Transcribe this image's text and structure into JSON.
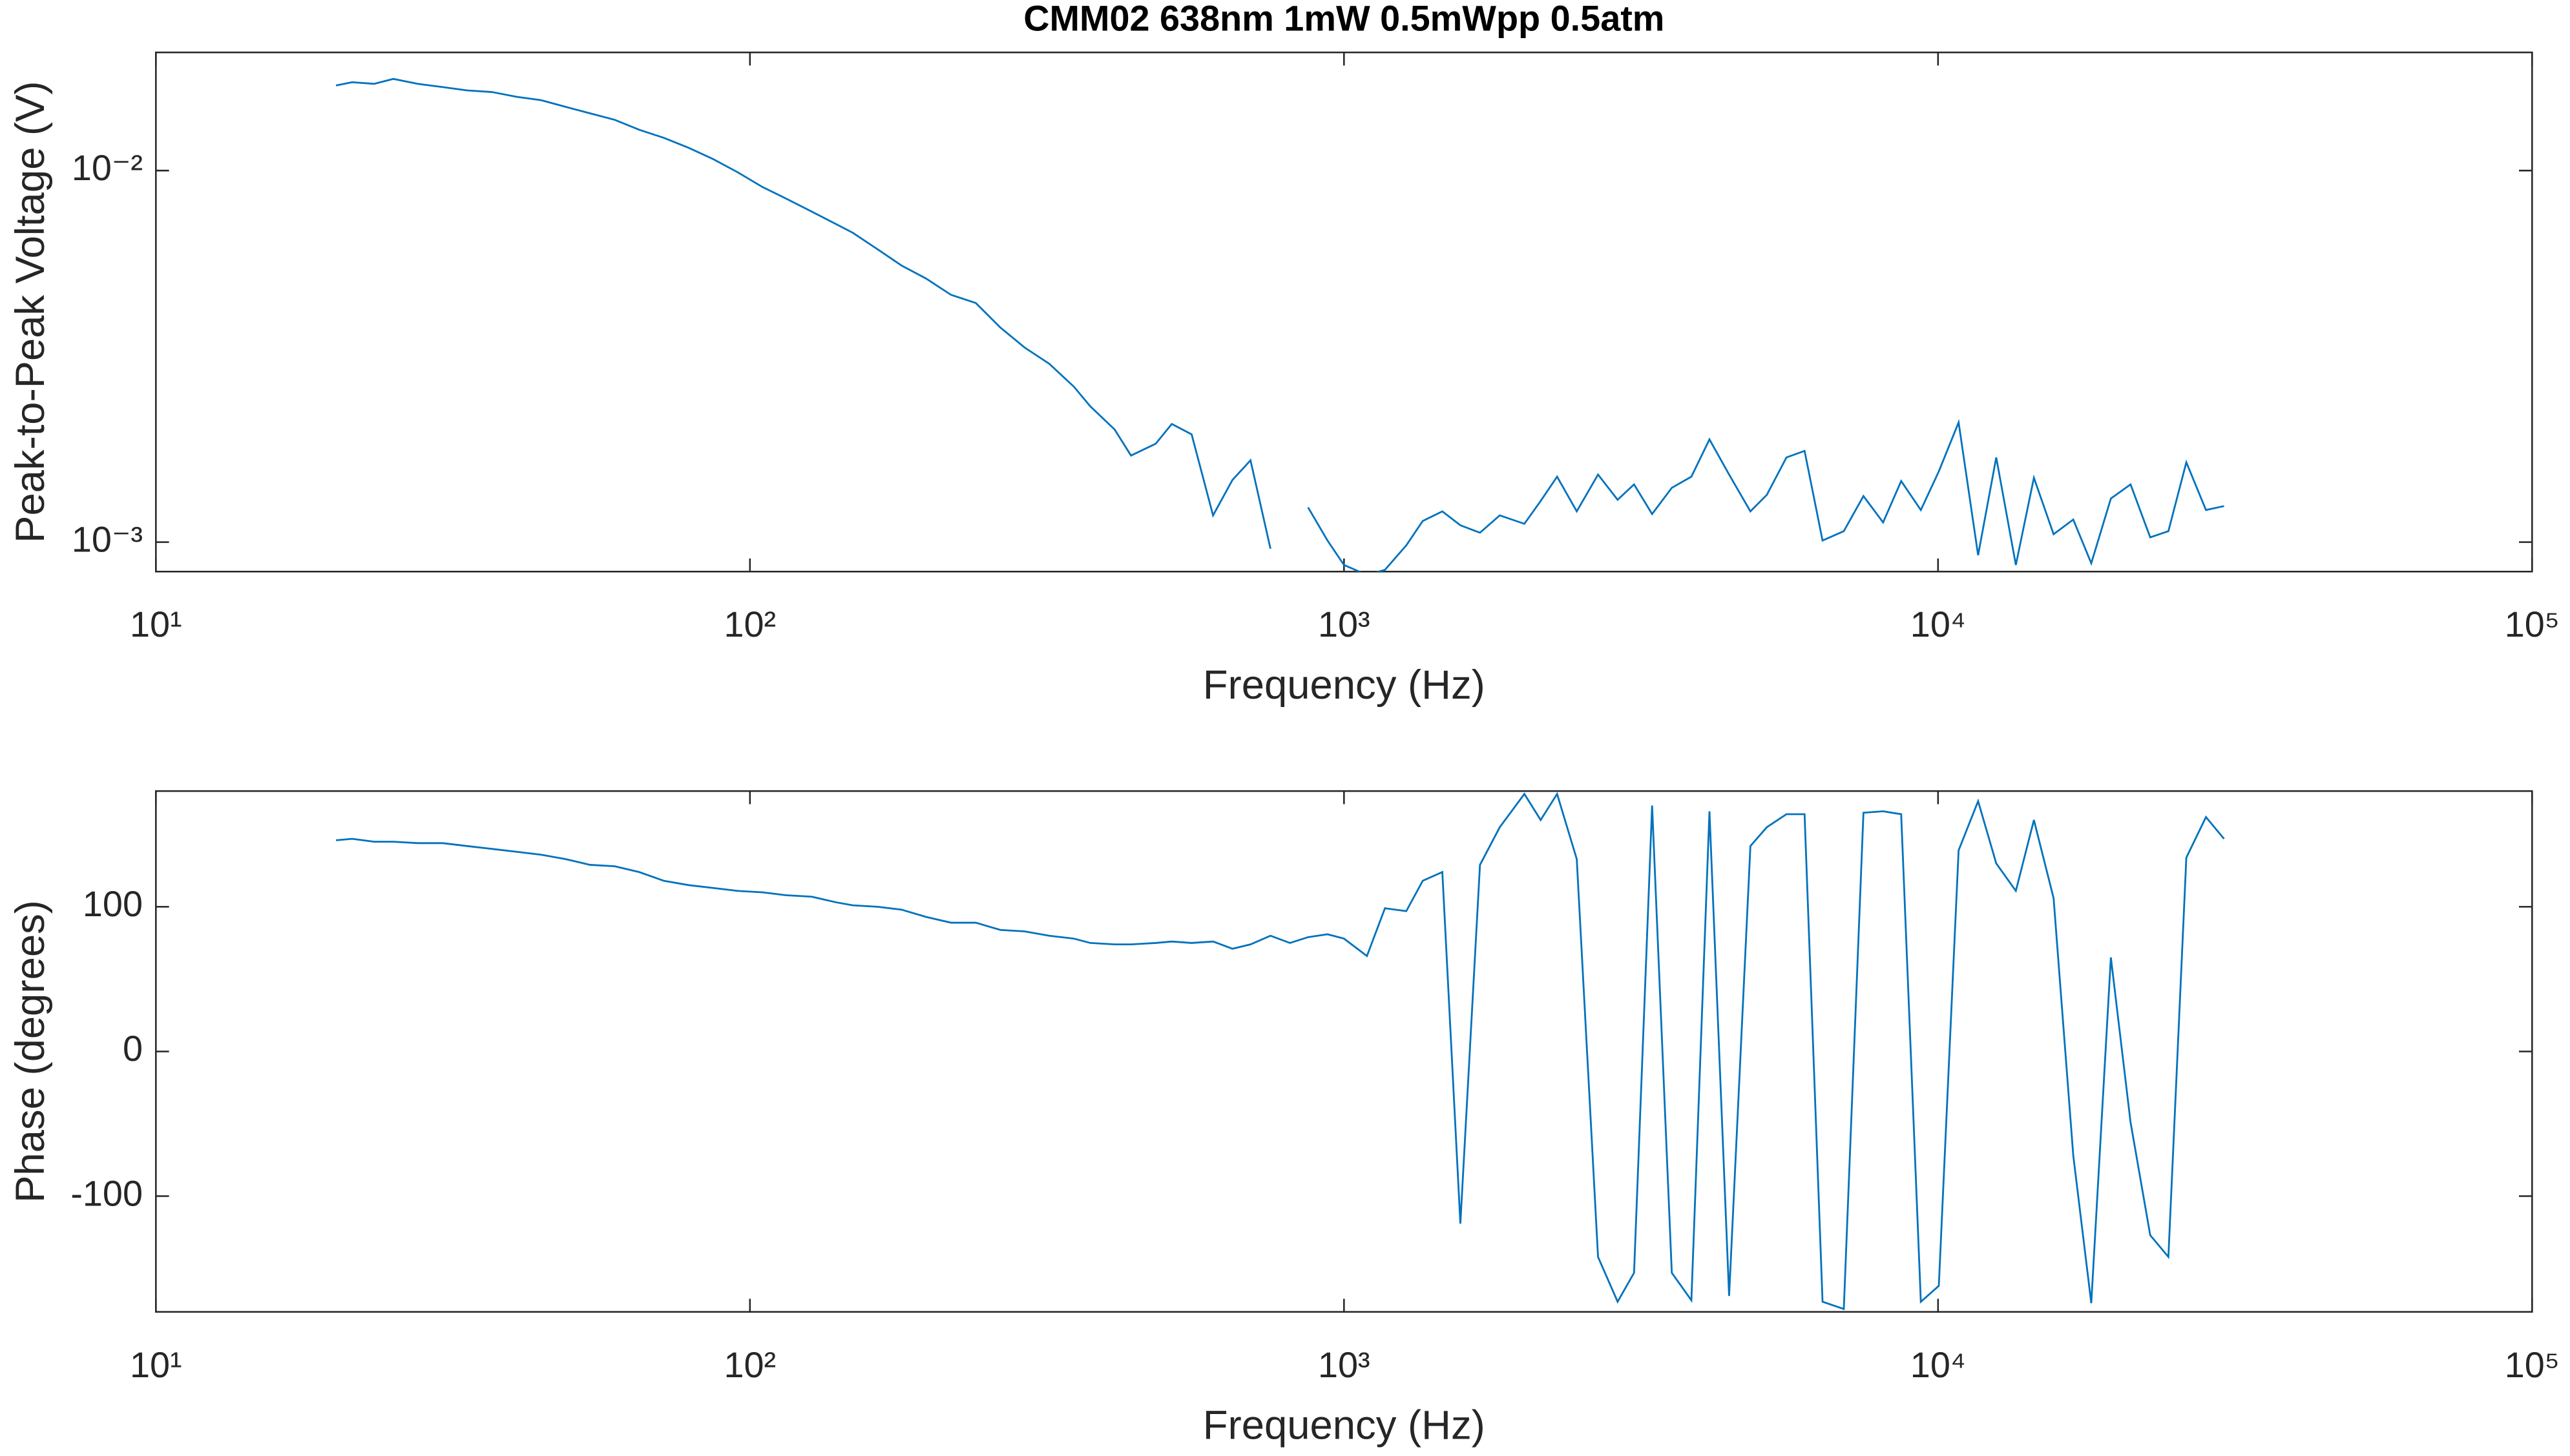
{
  "chart_data": [
    {
      "type": "line",
      "title": "CMM02 638nm 1mW 0.5mWpp 0.5atm",
      "xlabel": "Frequency (Hz)",
      "ylabel": "Peak-to-Peak Voltage (V)",
      "xscale": "log",
      "yscale": "log",
      "x": [
        20.1,
        21.4,
        23.3,
        25.1,
        27.6,
        30.4,
        33.4,
        36.8,
        40.5,
        44.5,
        48.9,
        53.8,
        59.2,
        65.1,
        71.6,
        78.8,
        86.7,
        95.3,
        105,
        115,
        127,
        140,
        149,
        164,
        180,
        198,
        218,
        240,
        264,
        290,
        319,
        351,
        374,
        411,
        438,
        482,
        513,
        554,
        602,
        649,
        696,
        752,
        811,
        870,
        938,
        1000,
        1093,
        1172,
        1273,
        1357,
        1464,
        1570,
        1694,
        1829,
        2012,
        2143,
        2284,
        2465,
        2677,
        2888,
        3078,
        3301,
        3563,
        3844,
        4123,
        4449,
        4832,
        5149,
        5557,
        5961,
        6391,
        6940,
        7489,
        8082,
        8668,
        9355,
        10030,
        10830,
        11680,
        12530,
        13520,
        14500,
        15650,
        16890,
        18110,
        19540,
        21090,
        22760,
        24420,
        26180,
        28250,
        30300
      ],
      "series": [
        {
          "color": "#0072bd",
          "values": [
            0.01695,
            0.01729,
            0.01712,
            0.01765,
            0.01712,
            0.01678,
            0.01644,
            0.01627,
            0.01579,
            0.01547,
            0.01485,
            0.01426,
            0.0137,
            0.01288,
            0.01225,
            0.01152,
            0.01074,
            0.0099,
            0.00903,
            0.00841,
            0.00776,
            0.00716,
            0.0068,
            0.00614,
            0.00555,
            0.00512,
            0.00463,
            0.0044,
            0.00378,
            0.00334,
            0.00302,
            0.00262,
            0.00232,
            0.00201,
            0.00171,
            0.00184,
            0.00208,
            0.00195,
            0.00118,
            0.00147,
            0.00166,
            0.00096,
            null,
            0.00124,
            0.00101,
            0.000868,
            0.000816,
            0.000842,
            0.00098,
            0.00114,
            0.00121,
            0.00111,
            0.00106,
            0.00118,
            0.00112,
            0.00129,
            0.0015,
            0.00121,
            0.00152,
            0.0013,
            0.00143,
            0.00119,
            0.0014,
            0.0015,
            0.00189,
            0.00152,
            0.00121,
            0.00134,
            0.00169,
            0.00176,
            0.00101,
            0.00107,
            0.00133,
            0.00113,
            0.00146,
            0.00122,
            0.00155,
            0.0021,
            0.000922,
            0.00169,
            0.000868,
            0.00149,
            0.00105,
            0.00115,
            0.000877,
            0.00131,
            0.00143,
            0.00103,
            0.00107,
            0.00164,
            0.00122,
            0.00125
          ]
        }
      ],
      "xlim": [
        10,
        100000
      ],
      "xticks": [
        {
          "value": 10,
          "label": "10¹"
        },
        {
          "value": 100,
          "label": "10²"
        },
        {
          "value": 1000,
          "label": "10³"
        },
        {
          "value": 10000,
          "label": "10⁴"
        },
        {
          "value": 100000,
          "label": "10⁵"
        }
      ],
      "ylim": [
        0.000833,
        0.0208
      ],
      "yticks": [
        {
          "value": 0.001,
          "label": "10⁻³"
        },
        {
          "value": 0.01,
          "label": "10⁻²"
        }
      ]
    },
    {
      "type": "line",
      "xlabel": "Frequency (Hz)",
      "ylabel": "Phase (degrees)",
      "xscale": "log",
      "yscale": "linear",
      "x": [
        20.1,
        21.4,
        23.3,
        25.1,
        27.6,
        30.4,
        33.4,
        36.8,
        40.5,
        44.5,
        48.9,
        53.8,
        59.2,
        65.1,
        71.6,
        78.8,
        86.7,
        95.3,
        105,
        115,
        127,
        140,
        149,
        164,
        180,
        198,
        218,
        240,
        264,
        290,
        319,
        351,
        374,
        411,
        438,
        482,
        513,
        554,
        602,
        649,
        696,
        752,
        811,
        870,
        938,
        1000,
        1093,
        1172,
        1273,
        1357,
        1464,
        1570,
        1694,
        1829,
        2012,
        2143,
        2284,
        2465,
        2677,
        2888,
        3078,
        3301,
        3563,
        3844,
        4123,
        4449,
        4832,
        5149,
        5557,
        5961,
        6391,
        6940,
        7489,
        8082,
        8668,
        9355,
        10030,
        10830,
        11680,
        12530,
        13520,
        14500,
        15650,
        16890,
        18110,
        19540,
        21090,
        22760,
        24420,
        26180,
        28250,
        30300
      ],
      "series": [
        {
          "color": "#0072bd",
          "values": [
            146,
            147,
            145,
            145,
            144,
            144,
            142,
            140,
            138,
            136,
            133,
            129,
            128,
            124,
            118,
            115,
            113,
            111,
            110,
            108,
            107,
            103,
            101,
            100,
            98,
            93,
            89,
            89,
            84,
            83,
            80,
            78,
            75,
            74,
            74,
            75,
            76,
            75,
            76,
            71,
            74,
            80,
            75,
            79,
            81,
            78,
            66,
            99,
            97,
            118,
            124,
            -119,
            129,
            155,
            178,
            160,
            178,
            133,
            -142,
            -173,
            -153,
            170,
            -153,
            -172,
            166,
            -169,
            142,
            155,
            164,
            164,
            -173,
            -178,
            165,
            166,
            164,
            -173,
            -162,
            139,
            173,
            130,
            111,
            160,
            106,
            -72,
            -174,
            65,
            -49,
            -127,
            -142,
            134,
            162,
            147
          ]
        }
      ],
      "xlim": [
        10,
        100000
      ],
      "xticks": [
        {
          "value": 10,
          "label": "10¹"
        },
        {
          "value": 100,
          "label": "10²"
        },
        {
          "value": 1000,
          "label": "10³"
        },
        {
          "value": 10000,
          "label": "10⁴"
        },
        {
          "value": 100000,
          "label": "10⁵"
        }
      ],
      "ylim": [
        -180,
        180
      ],
      "yticks": [
        -100,
        0,
        100
      ]
    }
  ]
}
